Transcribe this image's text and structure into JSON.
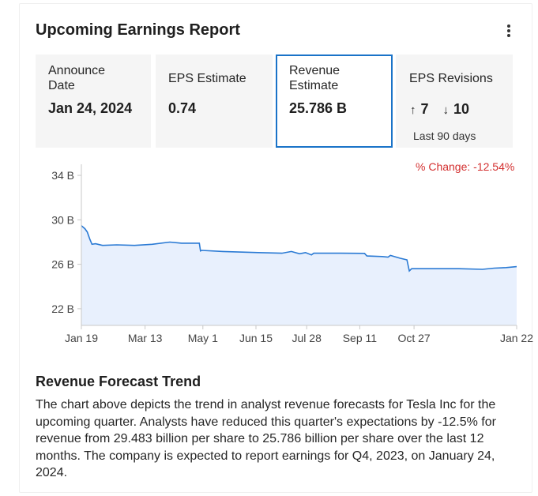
{
  "widget": {
    "title": "Upcoming Earnings Report",
    "menu_icon": "kebab-menu-icon"
  },
  "stats": {
    "announce": {
      "label": "Announce Date",
      "value": "Jan 24, 2024"
    },
    "eps": {
      "label": "EPS Estimate",
      "value": "0.74"
    },
    "revenue": {
      "label": "Revenue Estimate",
      "value": "25.786 B"
    },
    "revisions": {
      "label": "EPS Revisions",
      "up": "7",
      "down": "10",
      "up_icon": "arrow-up-icon",
      "down_icon": "arrow-down-icon",
      "period": "Last 90 days"
    }
  },
  "colors": {
    "accent": "#1a73c8",
    "line": "#2a7ad4",
    "area": "#e8f0fd",
    "negative": "#d32f2f"
  },
  "chart_data": {
    "type": "area",
    "annotation": "% Change: -12.54%",
    "y_ticks": [
      22,
      26,
      30,
      34
    ],
    "y_tick_labels": [
      "22 B",
      "26 B",
      "30 B",
      "34 B"
    ],
    "ylim": [
      20.5,
      35
    ],
    "x_ticks": [
      "Jan 19",
      "Mar 13",
      "May 1",
      "Jun 15",
      "Jul 28",
      "Sep 11",
      "Oct 27",
      "Jan 22"
    ],
    "x_tick_days": [
      0,
      54,
      103,
      148,
      191,
      236,
      282,
      369
    ],
    "xlim": [
      0,
      369
    ],
    "grid": false,
    "series": [
      {
        "points": [
          [
            0,
            29.48
          ],
          [
            3,
            29.2
          ],
          [
            5,
            28.9
          ],
          [
            7,
            28.3
          ],
          [
            9,
            27.8
          ],
          [
            12,
            27.85
          ],
          [
            18,
            27.7
          ],
          [
            30,
            27.75
          ],
          [
            45,
            27.7
          ],
          [
            60,
            27.8
          ],
          [
            75,
            28.0
          ],
          [
            85,
            27.9
          ],
          [
            100,
            27.9
          ],
          [
            101,
            27.2
          ],
          [
            102,
            27.25
          ],
          [
            120,
            27.15
          ],
          [
            150,
            27.05
          ],
          [
            170,
            27.0
          ],
          [
            178,
            27.15
          ],
          [
            185,
            26.95
          ],
          [
            190,
            27.05
          ],
          [
            195,
            26.85
          ],
          [
            197,
            27.0
          ],
          [
            220,
            27.0
          ],
          [
            240,
            26.98
          ],
          [
            242,
            26.75
          ],
          [
            255,
            26.7
          ],
          [
            260,
            26.65
          ],
          [
            262,
            26.8
          ],
          [
            270,
            26.55
          ],
          [
            276,
            26.4
          ],
          [
            278,
            25.4
          ],
          [
            280,
            25.6
          ],
          [
            300,
            25.6
          ],
          [
            320,
            25.6
          ],
          [
            340,
            25.55
          ],
          [
            350,
            25.65
          ],
          [
            360,
            25.7
          ],
          [
            369,
            25.786
          ]
        ]
      }
    ]
  },
  "description": {
    "title": "Revenue Forecast Trend",
    "text": "The chart above depicts the trend in analyst revenue forecasts for Tesla Inc for the upcoming quarter. Analysts have reduced this quarter's expectations by -12.5% for revenue from 29.483 billion per share to 25.786 billion per share over the last 12 months. The company is expected to report earnings for Q4, 2023, on January 24, 2024."
  }
}
